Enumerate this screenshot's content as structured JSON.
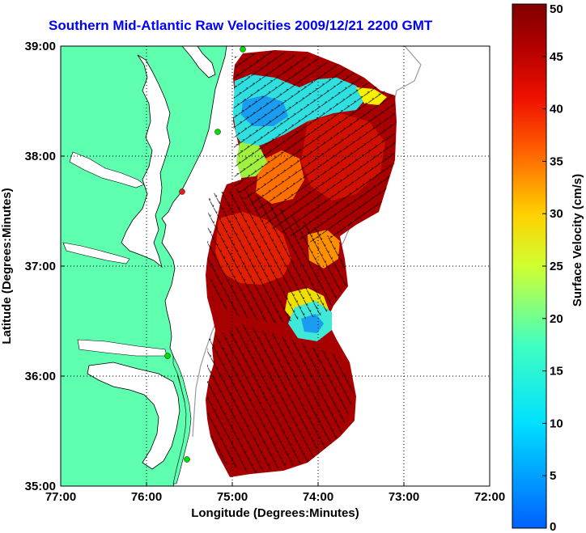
{
  "title": "Southern Mid-Atlantic Raw Velocities 2009/12/21 2200 GMT",
  "axes": {
    "xlabel": "Longitude (Degrees:Minutes)",
    "ylabel": "Latitude (Degrees:Minutes)",
    "xticks": [
      "77:00",
      "76:00",
      "75:00",
      "74:00",
      "73:00",
      "72:00"
    ],
    "yticks": [
      "39:00",
      "38:00",
      "37:00",
      "36:00",
      "35:00"
    ]
  },
  "colorbar": {
    "label": "Surface Velocity (cm/s)",
    "ticks": [
      "50",
      "45",
      "40",
      "35",
      "30",
      "25",
      "20",
      "15",
      "10",
      "5",
      "0"
    ],
    "min": 0,
    "max": 50
  },
  "colors": {
    "land": "#5effaf",
    "title": "#0000ff",
    "ocean": "#ffffff"
  }
}
